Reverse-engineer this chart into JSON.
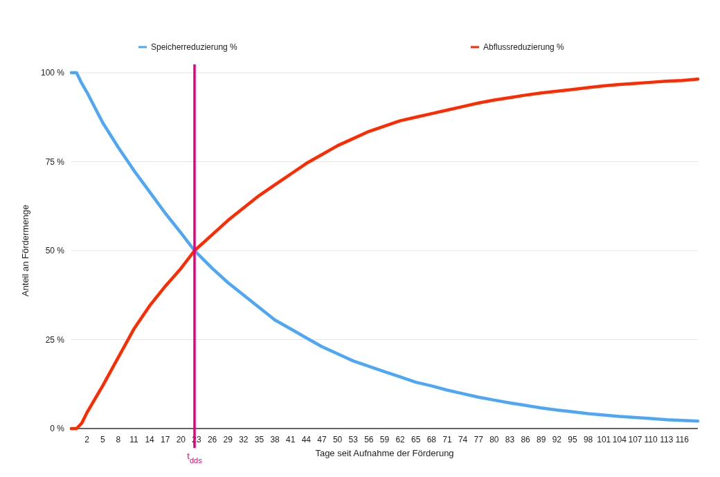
{
  "chart_data": {
    "type": "line",
    "xlabel": "Tage seit Aufnahme der Förderung",
    "ylabel": "Anteil an Fördermenge",
    "x": [
      -1,
      0,
      1,
      2,
      5,
      8,
      11,
      14,
      17,
      20,
      22.6,
      26,
      29,
      32,
      35,
      38,
      41,
      44,
      47,
      50,
      53,
      56,
      59,
      62,
      65,
      68,
      71,
      74,
      77,
      80,
      83,
      86,
      89,
      92,
      95,
      98,
      101,
      104,
      107,
      110,
      113,
      116,
      119
    ],
    "series": [
      {
        "name": "Speicherreduzierung %",
        "color": "#4ea7f5",
        "values": [
          100,
          100,
          97,
          94.5,
          86,
          79,
          72.5,
          66.5,
          60.5,
          55,
          50,
          45,
          41,
          37.5,
          34,
          30.5,
          28,
          25.5,
          23,
          21,
          19,
          17.5,
          16,
          14.5,
          13,
          12,
          10.8,
          9.8,
          8.8,
          8,
          7.2,
          6.5,
          5.8,
          5.2,
          4.7,
          4.2,
          3.8,
          3.4,
          3.1,
          2.8,
          2.5,
          2.3,
          2.1
        ]
      },
      {
        "name": "Abflussreduzierung %",
        "color": "#ff2a00",
        "values": [
          0,
          0,
          1.5,
          4.5,
          12,
          20,
          28,
          34.5,
          40,
          45,
          50,
          54.5,
          58.5,
          62,
          65.5,
          68.5,
          71.5,
          74.5,
          77,
          79.5,
          81.5,
          83.5,
          85,
          86.5,
          87.5,
          88.5,
          89.5,
          90.5,
          91.5,
          92.3,
          93,
          93.7,
          94.3,
          94.8,
          95.3,
          95.8,
          96.3,
          96.7,
          97,
          97.3,
          97.6,
          97.8,
          98.2
        ]
      }
    ],
    "xlim": [
      -1,
      119
    ],
    "xticks": [
      2,
      5,
      8,
      11,
      14,
      17,
      20,
      23,
      26,
      29,
      32,
      35,
      38,
      41,
      44,
      47,
      50,
      53,
      56,
      59,
      62,
      65,
      68,
      71,
      74,
      77,
      80,
      83,
      86,
      89,
      92,
      95,
      98,
      101,
      104,
      107,
      110,
      113,
      116
    ],
    "ylim": [
      0,
      100
    ],
    "yticks": [
      {
        "value": 0,
        "label": "0 %"
      },
      {
        "value": 25,
        "label": "25 %"
      },
      {
        "value": 50,
        "label": "50 %"
      },
      {
        "value": 75,
        "label": "75 %"
      },
      {
        "value": 100,
        "label": "100 %"
      }
    ],
    "ref_lines": [
      {
        "axis": "x",
        "value": 22.6,
        "label": "t$_{dds}$",
        "color": "#e6007e"
      }
    ],
    "grid": "y",
    "legend": "top",
    "marker": "none",
    "line_style": "solid"
  }
}
